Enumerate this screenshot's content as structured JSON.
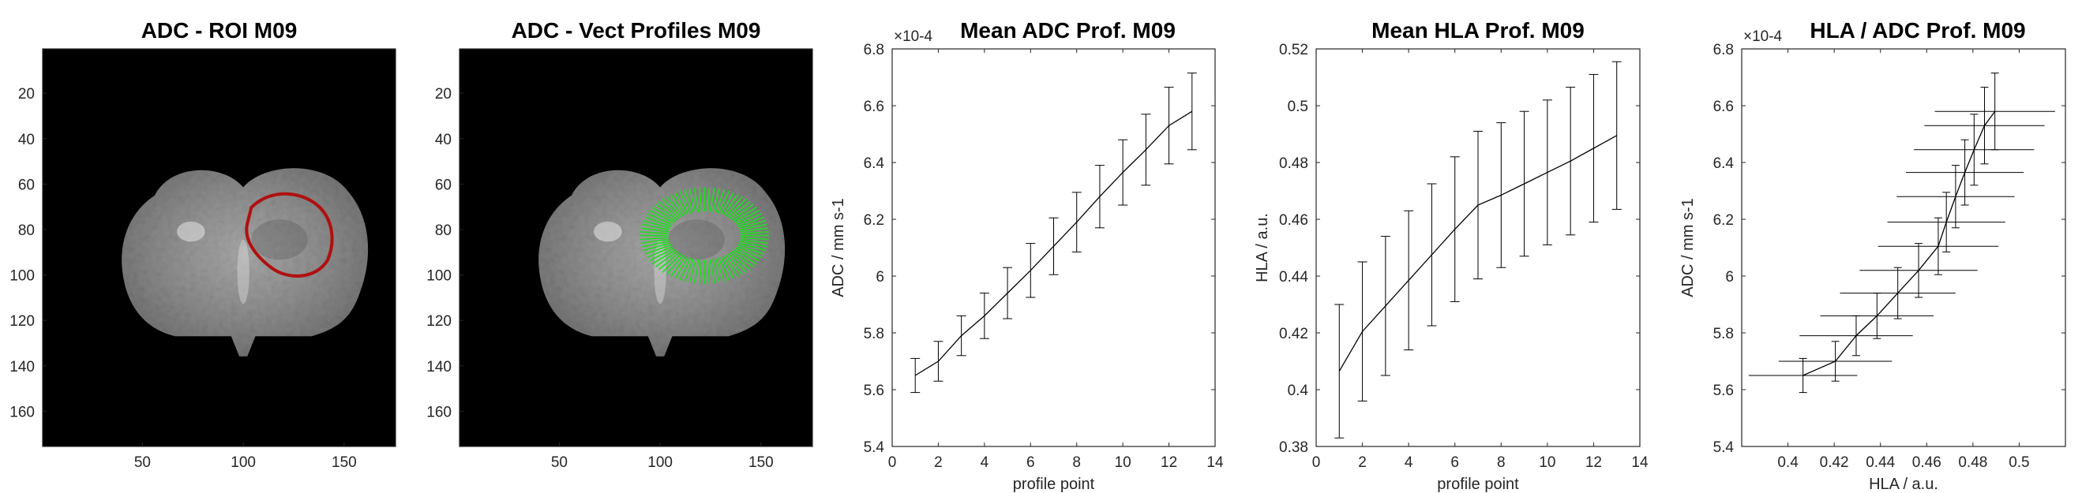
{
  "chart_data": [
    {
      "type": "image",
      "title": "ADC - ROI M09",
      "y_ticks": [
        "20",
        "40",
        "60",
        "80",
        "100",
        "120",
        "140",
        "160"
      ],
      "x_ticks": [
        "50",
        "100",
        "150"
      ],
      "xlim": [
        0.5,
        175.5
      ],
      "ylim": [
        0.5,
        175.5
      ],
      "overlay": "ROI outline",
      "overlay_color": "#b01010"
    },
    {
      "type": "image",
      "title": "ADC - Vect Profiles M09",
      "y_ticks": [
        "20",
        "40",
        "60",
        "80",
        "100",
        "120",
        "140",
        "160"
      ],
      "x_ticks": [
        "50",
        "100",
        "150"
      ],
      "xlim": [
        0.5,
        175.5
      ],
      "ylim": [
        0.5,
        175.5
      ],
      "overlay": "vector profiles",
      "overlay_color": "#22dd22"
    },
    {
      "type": "line",
      "title": "Mean ADC Prof. M09",
      "xlabel": "profile point",
      "ylabel": "ADC / mm s-1",
      "exponent_label": "×10-4",
      "xlim": [
        0,
        14
      ],
      "ylim": [
        5.4,
        6.8
      ],
      "x_ticks": [
        "0",
        "2",
        "4",
        "6",
        "8",
        "10",
        "12",
        "14"
      ],
      "y_ticks": [
        "5.4",
        "5.6",
        "5.8",
        "6",
        "6.2",
        "6.4",
        "6.6",
        "6.8"
      ],
      "x": [
        1,
        2,
        3,
        4,
        5,
        6,
        7,
        8,
        9,
        10,
        11,
        12,
        13
      ],
      "y": [
        5.65,
        5.7,
        5.79,
        5.86,
        5.94,
        6.02,
        6.105,
        6.19,
        6.28,
        6.365,
        6.445,
        6.53,
        6.58
      ],
      "err": [
        0.06,
        0.07,
        0.07,
        0.08,
        0.09,
        0.095,
        0.1,
        0.105,
        0.11,
        0.115,
        0.125,
        0.135,
        0.135
      ],
      "grid": false
    },
    {
      "type": "line",
      "title": "Mean HLA Prof. M09",
      "xlabel": "profile point",
      "ylabel": "HLA / a.u.",
      "xlim": [
        0,
        14
      ],
      "ylim": [
        0.38,
        0.52
      ],
      "x_ticks": [
        "0",
        "2",
        "4",
        "6",
        "8",
        "10",
        "12",
        "14"
      ],
      "y_ticks": [
        "0.38",
        "0.4",
        "0.42",
        "0.44",
        "0.46",
        "0.48",
        "0.5",
        "0.52"
      ],
      "x": [
        1,
        2,
        3,
        4,
        5,
        6,
        7,
        8,
        9,
        10,
        11,
        12,
        13
      ],
      "y": [
        0.4065,
        0.4205,
        0.4295,
        0.4385,
        0.4475,
        0.4565,
        0.465,
        0.4685,
        0.4725,
        0.4765,
        0.4805,
        0.485,
        0.4895
      ],
      "err": [
        0.0235,
        0.0245,
        0.0245,
        0.0245,
        0.025,
        0.0255,
        0.026,
        0.0255,
        0.0255,
        0.0255,
        0.026,
        0.026,
        0.026
      ],
      "grid": false
    },
    {
      "type": "scatter",
      "title": "HLA / ADC Prof. M09",
      "xlabel": "HLA / a.u.",
      "ylabel": "ADC / mm s-1",
      "exponent_label": "×10-4",
      "xlim": [
        0.38,
        0.52
      ],
      "ylim": [
        5.4,
        6.8
      ],
      "x_ticks": [
        "0.4",
        "0.42",
        "0.44",
        "0.46",
        "0.48",
        "0.5"
      ],
      "y_ticks": [
        "5.4",
        "5.6",
        "5.8",
        "6",
        "6.2",
        "6.4",
        "6.6",
        "6.8"
      ],
      "x": [
        0.4065,
        0.4205,
        0.4295,
        0.4385,
        0.4475,
        0.4565,
        0.465,
        0.4685,
        0.4725,
        0.4765,
        0.4805,
        0.485,
        0.4895
      ],
      "y": [
        5.65,
        5.7,
        5.79,
        5.86,
        5.94,
        6.02,
        6.105,
        6.19,
        6.28,
        6.365,
        6.445,
        6.53,
        6.58
      ],
      "xerr": [
        0.0235,
        0.0245,
        0.0245,
        0.0245,
        0.025,
        0.0255,
        0.026,
        0.0255,
        0.0255,
        0.0255,
        0.026,
        0.026,
        0.026
      ],
      "yerr": [
        0.06,
        0.07,
        0.07,
        0.08,
        0.09,
        0.095,
        0.1,
        0.105,
        0.11,
        0.115,
        0.125,
        0.135,
        0.135
      ],
      "grid": false
    }
  ]
}
